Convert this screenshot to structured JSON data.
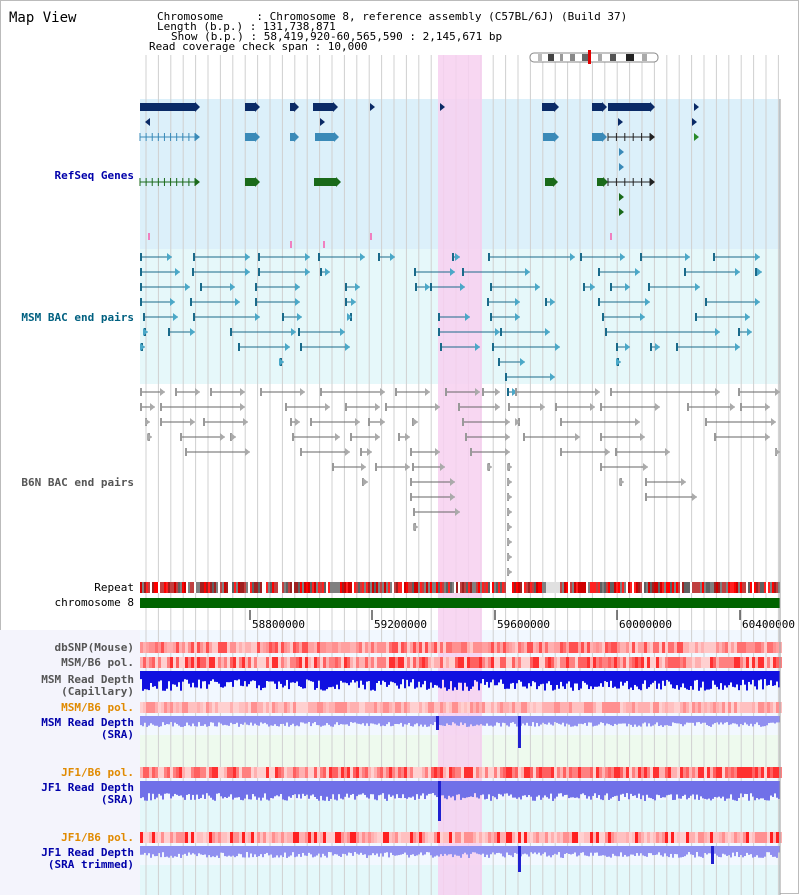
{
  "header": {
    "title": "Map View",
    "info_lines": [
      "Chromosome     : Chromosome 8, reference assembly (C57BL/6J) (Build 37)",
      "Length (b.p.) : 131,738,871",
      "Show (b.p.) : 58,419,920-60,565,590 : 2,145,671 bp",
      "Read coverage check span : 10,000"
    ]
  },
  "tracks": {
    "refseq": "RefSeq Genes",
    "msm_bac": "MSM BAC end pairs",
    "b6n_bac": "B6N BAC end pairs",
    "repeat": "Repeat",
    "chromosome": "chromosome 8",
    "dbsnp": "dbSNP(Mouse)",
    "msm_b6_pol": "MSM/B6 pol.",
    "msm_depth_cap_1": "MSM Read Depth",
    "msm_depth_cap_2": "(Capillary)",
    "msm_b6_pol_2": "MSM/B6 pol.",
    "msm_depth_sra_1": "MSM Read Depth",
    "msm_depth_sra_2": "(SRA)",
    "jf1_b6_pol": "JF1/B6 pol.",
    "jf1_depth_sra_1": "JF1 Read Depth",
    "jf1_depth_sra_2": "(SRA)",
    "jf1_b6_pol_2": "JF1/B6 pol.",
    "jf1_depth_trim_1": "JF1 Read Depth",
    "jf1_depth_trim_2": "(SRA trimmed)"
  },
  "axis": {
    "ticks": [
      "58800000",
      "59200000",
      "59600000",
      "60000000",
      "60400000"
    ]
  },
  "colors": {
    "refseq_label": "#0000aa",
    "msm_label": "#006080",
    "b6n_label": "#555555",
    "pol_label": "#e08a00",
    "depth_label": "#0000aa",
    "highlight": "#f7d0f0",
    "chromosome_bar": "#006400"
  }
}
